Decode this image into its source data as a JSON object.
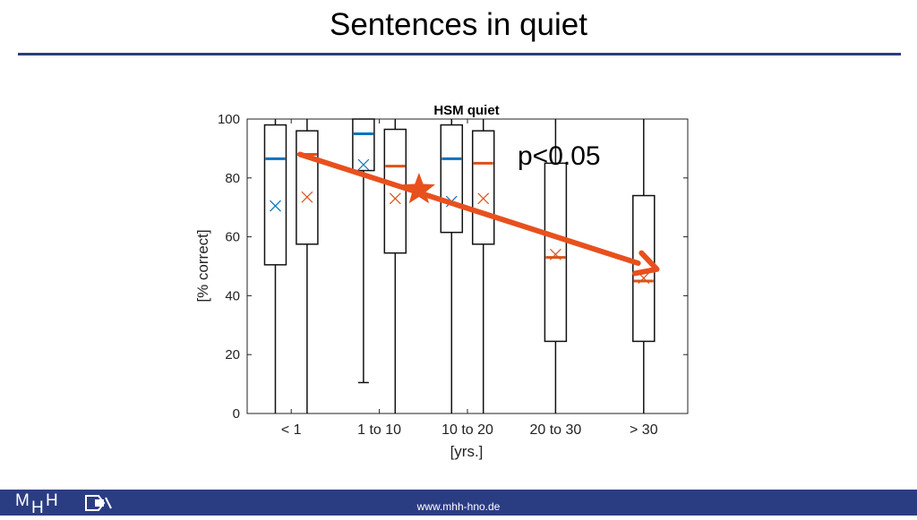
{
  "slide": {
    "title": "Sentences in quiet"
  },
  "footer": {
    "url": "www.mhh-hno.de",
    "logo_text": "MHH"
  },
  "colors": {
    "series1": "#0072bd",
    "series2": "#d95319",
    "annotation": "#e8501e",
    "footer": "#2b3d82",
    "rule": "#2a3d7c"
  },
  "annotation": {
    "text": "p<0.05",
    "trend_arrow": {
      "from_x": 1.1,
      "from_y": 88,
      "to_x": 5.15,
      "to_y": 49
    },
    "star": {
      "x": 2.45,
      "y": 76
    }
  },
  "chart_data": {
    "type": "boxplot",
    "title": "HSM quiet",
    "xlabel": "[yrs.]",
    "ylabel": "[% correct]",
    "ylim": [
      0,
      100
    ],
    "yticks": [
      0,
      20,
      40,
      60,
      80,
      100
    ],
    "categories": [
      "< 1",
      "1 to 10",
      "10 to 20",
      "20 to 30",
      "> 30"
    ],
    "grid": false,
    "series": [
      {
        "color": "#0072bd",
        "boxes": [
          {
            "category": "< 1",
            "min": 0,
            "q1": 50.5,
            "median": 86.5,
            "q3": 98,
            "max": 100,
            "mean": 70.5
          },
          {
            "category": "1 to 10",
            "min": 10.5,
            "q1": 82.5,
            "median": 95,
            "q3": 100,
            "max": 100,
            "mean": 84.5
          },
          {
            "category": "10 to 20",
            "min": 0,
            "q1": 61.5,
            "median": 86.5,
            "q3": 98,
            "max": 100,
            "mean": 72
          }
        ]
      },
      {
        "color": "#d95319",
        "boxes": [
          {
            "category": "< 1",
            "min": 0,
            "q1": 57.5,
            "median": 88,
            "q3": 96,
            "max": 100,
            "mean": 73.5
          },
          {
            "category": "1 to 10",
            "min": 0,
            "q1": 54.5,
            "median": 84,
            "q3": 96.5,
            "max": 100,
            "mean": 73
          },
          {
            "category": "10 to 20",
            "min": 0,
            "q1": 57.5,
            "median": 85,
            "q3": 96,
            "max": 100,
            "mean": 73
          },
          {
            "category": "20 to 30",
            "min": 0,
            "q1": 24.5,
            "median": 53,
            "q3": 85,
            "max": 100,
            "mean": 54
          },
          {
            "category": "> 30",
            "min": 0,
            "q1": 24.5,
            "median": 45,
            "q3": 74,
            "max": 100,
            "mean": 46
          }
        ]
      }
    ]
  }
}
